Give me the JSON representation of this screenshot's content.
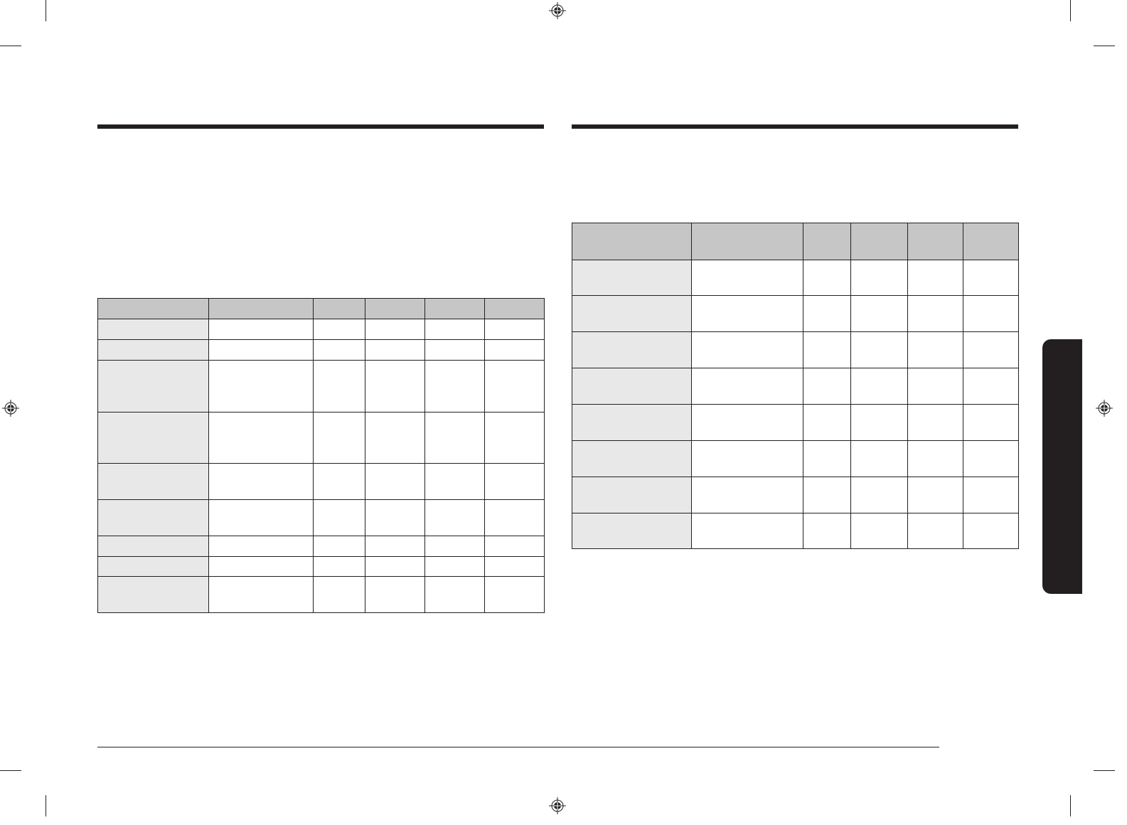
{
  "colors": {
    "ink": "#231f20",
    "header_fill": "#c6c6c6",
    "label_fill": "#e8e8e8",
    "background": "#ffffff"
  },
  "left_table": {
    "columns": [
      "",
      "",
      "",
      "",
      "",
      ""
    ],
    "rows": [
      [
        "",
        "",
        "",
        "",
        "",
        ""
      ],
      [
        "",
        "",
        "",
        "",
        "",
        ""
      ],
      [
        "",
        "",
        "",
        "",
        "",
        ""
      ],
      [
        "",
        "",
        "",
        "",
        "",
        ""
      ],
      [
        "",
        "",
        "",
        "",
        "",
        ""
      ],
      [
        "",
        "",
        "",
        "",
        "",
        ""
      ],
      [
        "",
        "",
        "",
        "",
        "",
        ""
      ],
      [
        "",
        "",
        "",
        "",
        "",
        ""
      ],
      [
        "",
        "",
        "",
        "",
        "",
        ""
      ]
    ]
  },
  "right_table": {
    "columns": [
      "",
      "",
      "",
      "",
      "",
      ""
    ],
    "rows": [
      [
        "",
        "",
        "",
        "",
        "",
        ""
      ],
      [
        "",
        "",
        "",
        "",
        "",
        ""
      ],
      [
        "",
        "",
        "",
        "",
        "",
        ""
      ],
      [
        "",
        "",
        "",
        "",
        "",
        ""
      ],
      [
        "",
        "",
        "",
        "",
        "",
        ""
      ],
      [
        "",
        "",
        "",
        "",
        "",
        ""
      ],
      [
        "",
        "",
        "",
        "",
        "",
        ""
      ],
      [
        "",
        "",
        "",
        "",
        "",
        ""
      ]
    ]
  },
  "icons": {
    "registration_mark": "registration-crosshair-icon",
    "side_tab": "section-thumb-tab"
  }
}
